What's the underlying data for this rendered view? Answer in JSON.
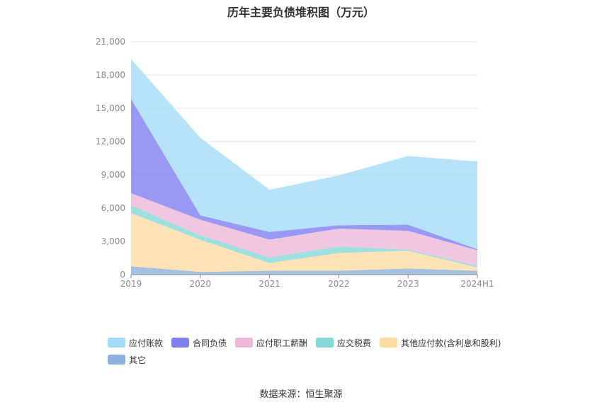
{
  "chart_data": {
    "type": "area",
    "stacked": true,
    "title": "历年主要负债堆积图（万元）",
    "source": "数据来源：恒生聚源",
    "categories": [
      "2019",
      "2020",
      "2021",
      "2022",
      "2023",
      "2024H1"
    ],
    "ylim": [
      0,
      21000
    ],
    "yticks": [
      "0",
      "3,000",
      "6,000",
      "9,000",
      "12,000",
      "15,000",
      "18,000",
      "21,000"
    ],
    "grid": true,
    "legend_position": "bottom-left",
    "series": [
      {
        "name": "其它",
        "color": "#8eb0dc",
        "values": [
          750,
          250,
          350,
          350,
          550,
          350
        ]
      },
      {
        "name": "其他应付款(含利息和股利)",
        "color": "#fddca4",
        "values": [
          4800,
          2900,
          700,
          1600,
          1600,
          300
        ]
      },
      {
        "name": "应交税费",
        "color": "#86d7d7",
        "values": [
          700,
          400,
          500,
          600,
          100,
          150
        ]
      },
      {
        "name": "应付职工薪酬",
        "color": "#edb8d9",
        "values": [
          1100,
          1400,
          1600,
          1600,
          1700,
          1400
        ]
      },
      {
        "name": "合同负债",
        "color": "#8080f0",
        "values": [
          8500,
          400,
          700,
          300,
          550,
          100
        ]
      },
      {
        "name": "应付账款",
        "color": "#a4dcf7",
        "values": [
          3600,
          7000,
          3800,
          4500,
          6200,
          7900
        ]
      }
    ],
    "legend_order": [
      "应付账款",
      "合同负债",
      "应付职工薪酬",
      "应交税费",
      "其他应付款(含利息和股利)",
      "其它"
    ]
  }
}
